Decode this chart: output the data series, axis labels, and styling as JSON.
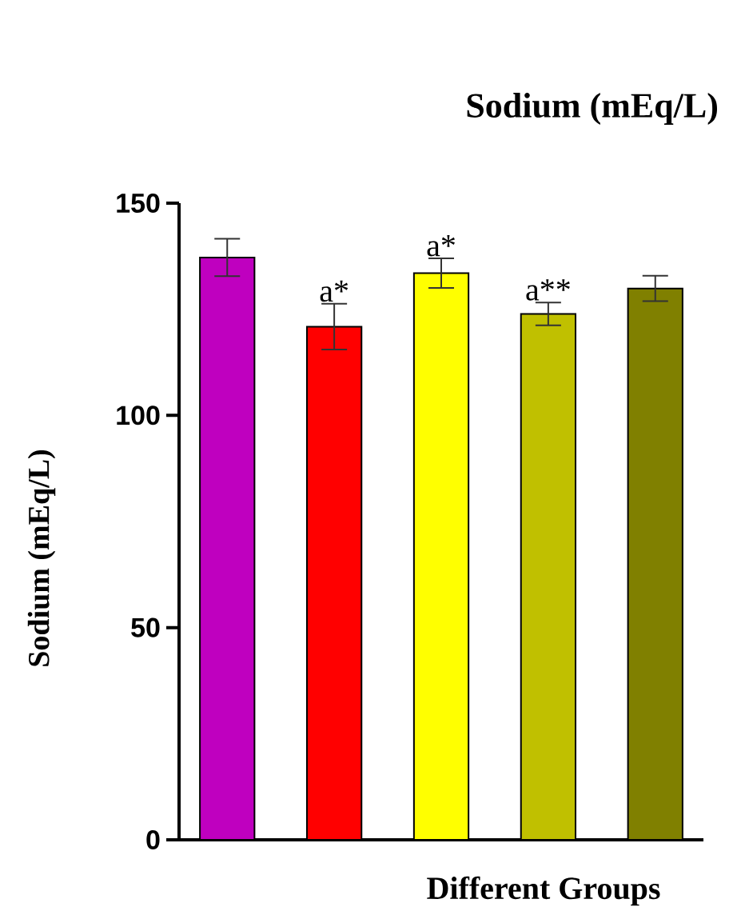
{
  "chart_data": {
    "type": "bar",
    "title": "Sodium (mEq/L)",
    "ylabel": "Sodium (mEq/L)",
    "xlabel": "Different Groups",
    "categories": [
      null,
      null,
      null,
      null,
      null
    ],
    "values": [
      137.2,
      120.9,
      133.5,
      123.9,
      129.9
    ],
    "errors": [
      4.4,
      5.4,
      3.5,
      2.7,
      3.0
    ],
    "value_labels": [
      null,
      "a*",
      "a*",
      "a**",
      null
    ],
    "colors": [
      "#bf00bf",
      "#ff0000",
      "#ffff00",
      "#c0c000",
      "#808000"
    ],
    "ylim": [
      0,
      150
    ],
    "yticks": [
      0,
      50,
      100,
      150
    ],
    "grid": false
  }
}
